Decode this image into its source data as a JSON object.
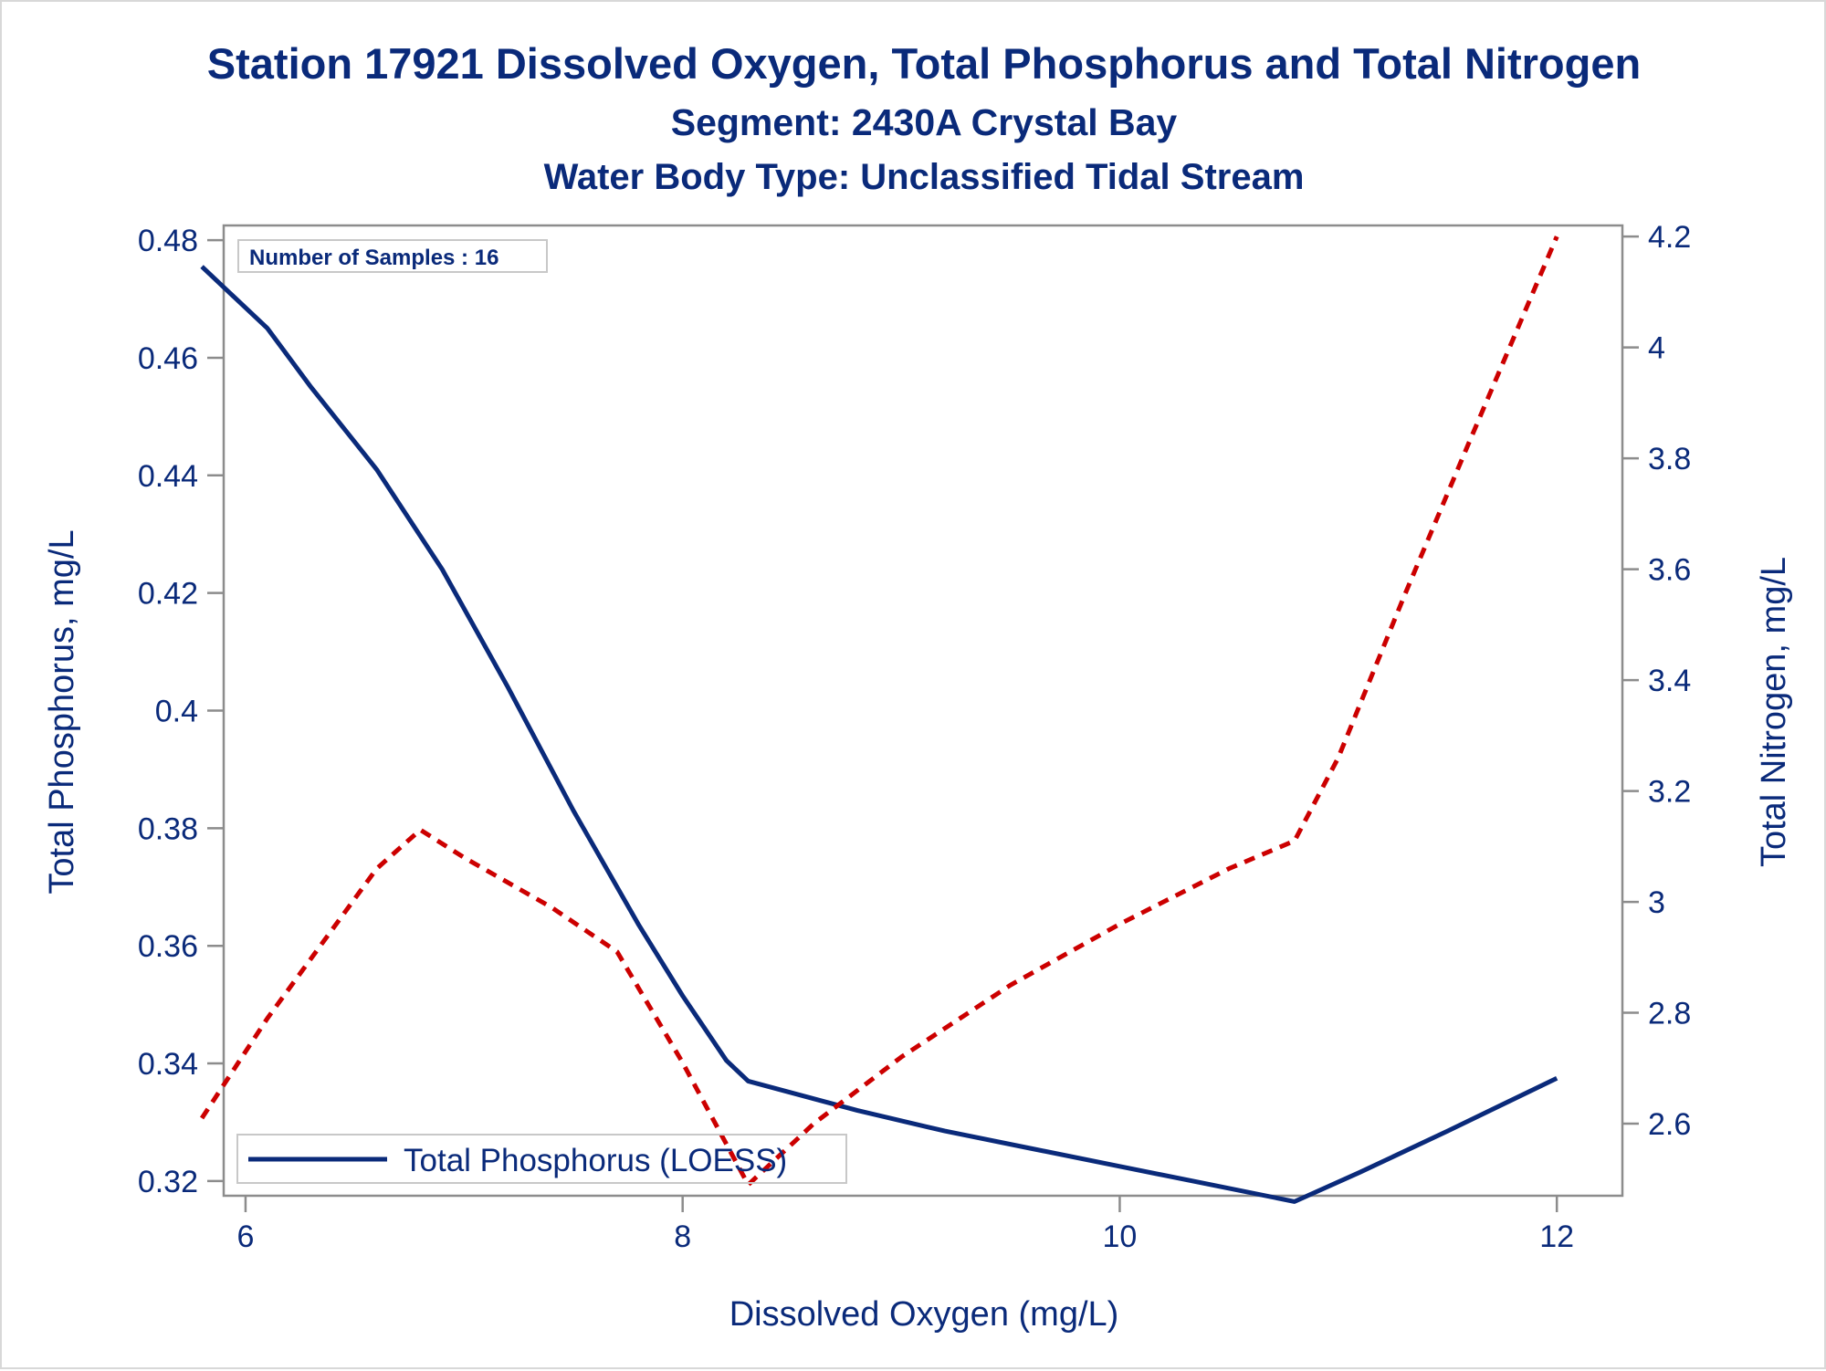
{
  "chart_data": {
    "type": "line",
    "title": "Station 17921  Dissolved Oxygen, Total Phosphorus and Total Nitrogen",
    "subtitle": "Segment: 2430A  Crystal Bay",
    "subtitle2": "Water Body Type: Unclassified Tidal Stream",
    "xlabel": "Dissolved Oxygen (mg/L)",
    "ylabel": "Total Phosphorus, mg/L",
    "y2label": "Total Nitrogen, mg/L",
    "xlim": [
      5.9,
      12.3
    ],
    "ylim": [
      0.3175,
      0.4825
    ],
    "y2lim": [
      2.47,
      4.22
    ],
    "xticks": [
      6,
      8,
      10,
      12
    ],
    "yticks": [
      0.32,
      0.34,
      0.36,
      0.38,
      0.4,
      0.42,
      0.44,
      0.46,
      0.48
    ],
    "ytick_labels": [
      "0.32",
      "0.34",
      "0.36",
      "0.38",
      "0.4",
      "0.42",
      "0.44",
      "0.46",
      "0.48"
    ],
    "y2ticks": [
      2.6,
      2.8,
      3,
      3.2,
      3.4,
      3.6,
      3.8,
      4,
      4.2
    ],
    "y2tick_labels": [
      "2.6",
      "2.8",
      "3",
      "3.2",
      "3.4",
      "3.6",
      "3.8",
      "4",
      "4.2"
    ],
    "annotation": "Number of Samples : 16",
    "legend_position": "bottom-left",
    "grid": false,
    "series": [
      {
        "name": "Total Phosphorus (LOESS)",
        "axis": "left",
        "style": "solid",
        "color": "#0a2a7a",
        "x": [
          5.8,
          6.1,
          6.3,
          6.6,
          6.9,
          7.2,
          7.5,
          7.8,
          8.0,
          8.2,
          8.3,
          8.5,
          8.8,
          9.2,
          9.6,
          10.0,
          10.4,
          10.8,
          11.1,
          11.5,
          12.0
        ],
        "y": [
          0.4755,
          0.465,
          0.455,
          0.441,
          0.424,
          0.404,
          0.383,
          0.3635,
          0.3515,
          0.3405,
          0.337,
          0.335,
          0.332,
          0.3285,
          0.3255,
          0.3225,
          0.3195,
          0.3165,
          0.3215,
          0.3285,
          0.3375
        ]
      },
      {
        "name": "Total Nitrogen",
        "axis": "right",
        "style": "dashed",
        "color": "#cc0000",
        "x": [
          5.8,
          6.1,
          6.6,
          6.8,
          7.0,
          7.4,
          7.7,
          8.0,
          8.3,
          8.6,
          9.0,
          9.5,
          10.0,
          10.5,
          10.8,
          11.0,
          11.3,
          11.6,
          12.0
        ],
        "y": [
          2.61,
          2.79,
          3.06,
          3.13,
          3.08,
          2.99,
          2.91,
          2.71,
          2.49,
          2.6,
          2.72,
          2.85,
          2.96,
          3.06,
          3.11,
          3.26,
          3.55,
          3.83,
          4.2
        ]
      }
    ]
  }
}
